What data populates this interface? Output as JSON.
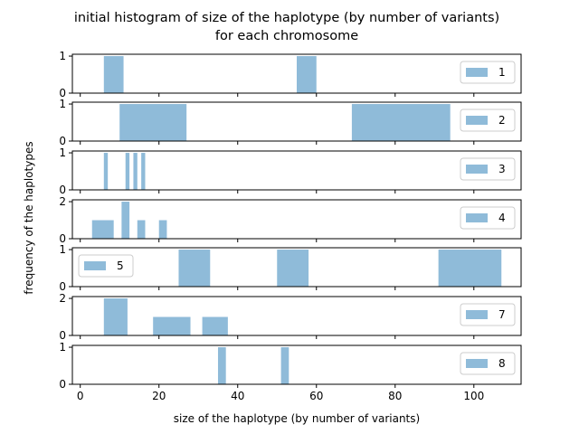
{
  "figure": {
    "title_line1": "initial histogram of size of the haplotype (by number of variants)",
    "title_line2": "for each chromosome",
    "xlabel": "size of the haplotype (by number of variants)",
    "ylabel": "frequency of the haplotypes"
  },
  "colors": {
    "bar": "#1f77b4",
    "bar_alpha": 0.5,
    "axis": "#000000"
  },
  "chart_data": {
    "type": "bar",
    "xlim": [
      -2,
      112
    ],
    "xticks": [
      0,
      20,
      40,
      60,
      80,
      100
    ],
    "grid": false,
    "panels": [
      {
        "legend": "1",
        "legend_loc": "right",
        "ylim": [
          0,
          1.05
        ],
        "yticks": [
          0,
          1
        ],
        "bins": [
          {
            "x0": 6,
            "x1": 11,
            "count": 1
          },
          {
            "x0": 55,
            "x1": 60,
            "count": 1
          }
        ]
      },
      {
        "legend": "2",
        "legend_loc": "right",
        "ylim": [
          0,
          1.05
        ],
        "yticks": [
          0,
          1
        ],
        "bins": [
          {
            "x0": 10,
            "x1": 27,
            "count": 1
          },
          {
            "x0": 69,
            "x1": 94,
            "count": 1
          }
        ]
      },
      {
        "legend": "3",
        "legend_loc": "right",
        "ylim": [
          0,
          1.05
        ],
        "yticks": [
          0,
          1
        ],
        "bins": [
          {
            "x0": 6,
            "x1": 7,
            "count": 1
          },
          {
            "x0": 11.5,
            "x1": 12.5,
            "count": 1
          },
          {
            "x0": 13.5,
            "x1": 14.5,
            "count": 1
          },
          {
            "x0": 15.5,
            "x1": 16.5,
            "count": 1
          }
        ]
      },
      {
        "legend": "4",
        "legend_loc": "right",
        "ylim": [
          0,
          2.1
        ],
        "yticks": [
          0,
          2
        ],
        "bins": [
          {
            "x0": 3,
            "x1": 8.5,
            "count": 1
          },
          {
            "x0": 10.5,
            "x1": 12.5,
            "count": 2
          },
          {
            "x0": 14.5,
            "x1": 16.5,
            "count": 1
          },
          {
            "x0": 20,
            "x1": 22,
            "count": 1
          }
        ]
      },
      {
        "legend": "5",
        "legend_loc": "left",
        "ylim": [
          0,
          1.05
        ],
        "yticks": [
          0,
          1
        ],
        "bins": [
          {
            "x0": 25,
            "x1": 33,
            "count": 1
          },
          {
            "x0": 50,
            "x1": 58,
            "count": 1
          },
          {
            "x0": 91,
            "x1": 107,
            "count": 1
          }
        ]
      },
      {
        "legend": "7",
        "legend_loc": "right",
        "ylim": [
          0,
          2.1
        ],
        "yticks": [
          0,
          2
        ],
        "bins": [
          {
            "x0": 6,
            "x1": 12,
            "count": 2
          },
          {
            "x0": 18.5,
            "x1": 28,
            "count": 1
          },
          {
            "x0": 31,
            "x1": 37.5,
            "count": 1
          }
        ]
      },
      {
        "legend": "8",
        "legend_loc": "right",
        "ylim": [
          0,
          1.05
        ],
        "yticks": [
          0,
          1
        ],
        "bins": [
          {
            "x0": 35,
            "x1": 37,
            "count": 1
          },
          {
            "x0": 51,
            "x1": 53,
            "count": 1
          }
        ]
      }
    ]
  }
}
